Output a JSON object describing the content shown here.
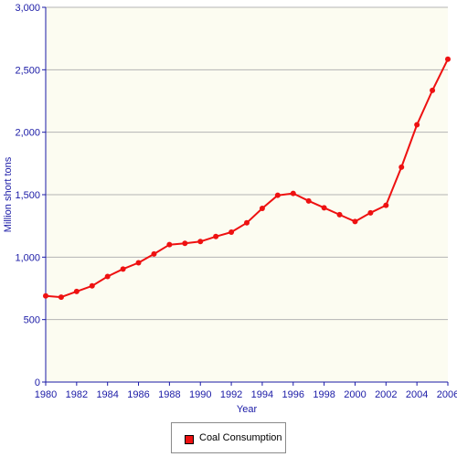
{
  "chart_data": {
    "type": "line",
    "xlabel": "Year",
    "ylabel": "Million short tons",
    "xlim": [
      1980,
      2006
    ],
    "ylim": [
      0,
      3000
    ],
    "x_ticks": [
      1980,
      1982,
      1984,
      1986,
      1988,
      1990,
      1992,
      1994,
      1996,
      1998,
      2000,
      2002,
      2004,
      2006
    ],
    "y_ticks": [
      0,
      500,
      1000,
      1500,
      2000,
      2500,
      3000
    ],
    "y_tick_labels": [
      "0",
      "500",
      "1,000",
      "1,500",
      "2,000",
      "2,500",
      "3,000"
    ],
    "grid": "horizontal",
    "legend": "bottom-center",
    "series": [
      {
        "name": "Coal Consumption",
        "color": "#ee1111",
        "x": [
          1980,
          1981,
          1982,
          1983,
          1984,
          1985,
          1986,
          1987,
          1988,
          1989,
          1990,
          1991,
          1992,
          1993,
          1994,
          1995,
          1996,
          1997,
          1998,
          1999,
          2000,
          2001,
          2002,
          2003,
          2004,
          2005,
          2006
        ],
        "y": [
          690,
          680,
          725,
          770,
          845,
          905,
          955,
          1025,
          1100,
          1110,
          1125,
          1165,
          1200,
          1275,
          1390,
          1495,
          1510,
          1450,
          1395,
          1340,
          1285,
          1355,
          1415,
          1720,
          2060,
          2335,
          2585
        ]
      }
    ]
  },
  "colors": {
    "plot_background": "#fcfcf1",
    "axis": "#1a1aa6",
    "gridline": "#b4b4b4",
    "tick_label": "#1a1aa6"
  }
}
